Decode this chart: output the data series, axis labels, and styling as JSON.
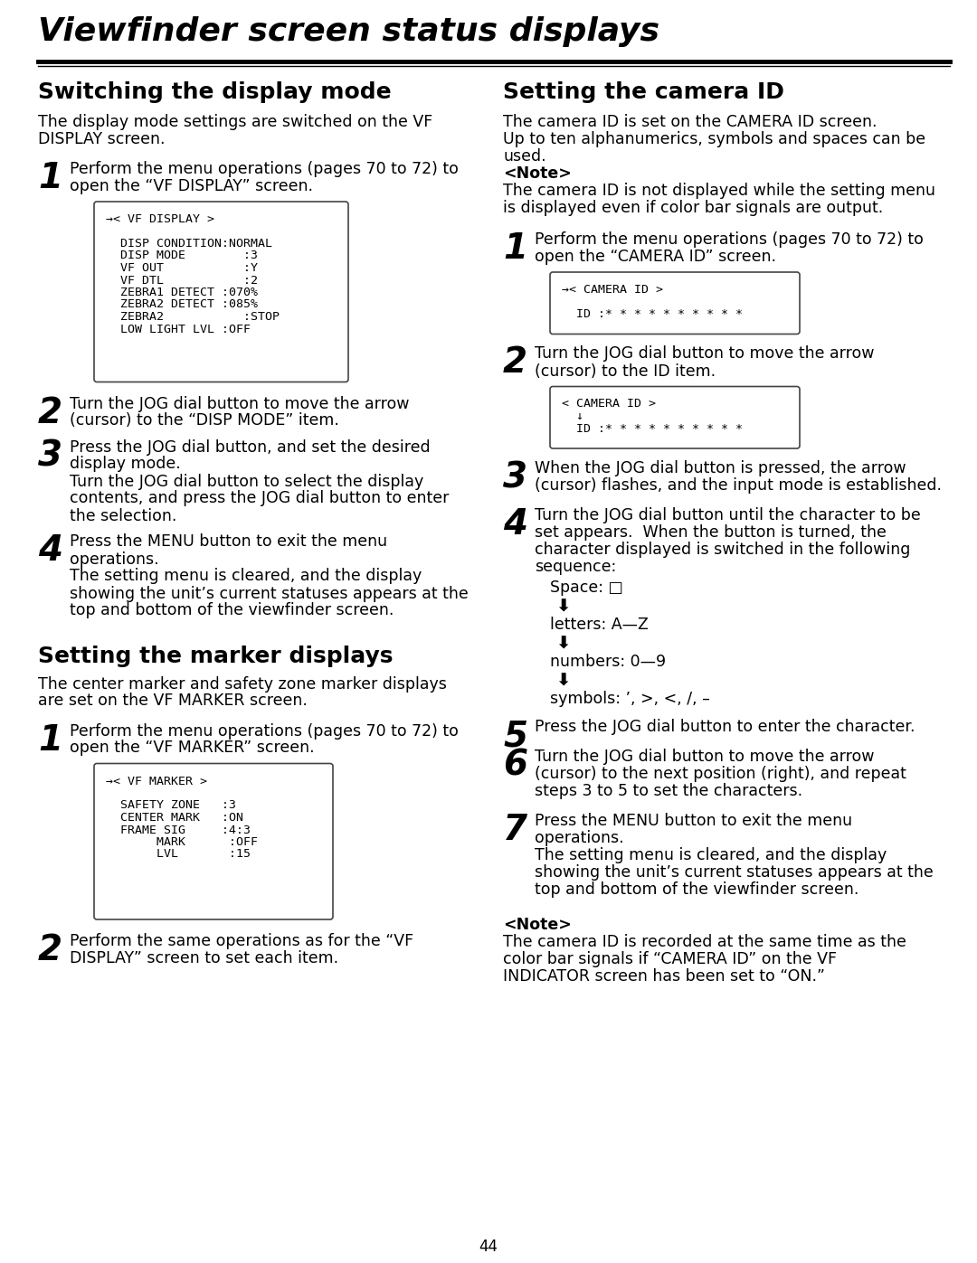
{
  "page_bg": "#ffffff",
  "title": "Viewfinder screen status displays",
  "page_number": "44",
  "left_col": {
    "section1_title": "Switching the display mode",
    "section1_intro_lines": [
      "The display mode settings are switched on the VF",
      "DISPLAY screen."
    ],
    "step1_num": "1",
    "step1_lines": [
      "Perform the menu operations (pages 70 to 72) to",
      "open the “VF DISPLAY” screen."
    ],
    "box1_lines": [
      "→< VF DISPLAY >",
      "",
      "  DISP CONDITION:NORMAL",
      "  DISP MODE        :3",
      "  VF OUT           :Y",
      "  VF DTL           :2",
      "  ZEBRA1 DETECT :070%",
      "  ZEBRA2 DETECT :085%",
      "  ZEBRA2           :STOP",
      "  LOW LIGHT LVL :OFF",
      "",
      "",
      ""
    ],
    "step2_num": "2",
    "step2_lines": [
      "Turn the JOG dial button to move the arrow",
      "(cursor) to the “DISP MODE” item."
    ],
    "step3_num": "3",
    "step3_lines": [
      "Press the JOG dial button, and set the desired",
      "display mode.",
      "Turn the JOG dial button to select the display",
      "contents, and press the JOG dial button to enter",
      "the selection."
    ],
    "step4_num": "4",
    "step4_lines": [
      "Press the MENU button to exit the menu",
      "operations.",
      "The setting menu is cleared, and the display",
      "showing the unit’s current statuses appears at the",
      "top and bottom of the viewfinder screen."
    ],
    "section2_title": "Setting the marker displays",
    "section2_intro_lines": [
      "The center marker and safety zone marker displays",
      "are set on the VF MARKER screen."
    ],
    "step_m1_num": "1",
    "step_m1_lines": [
      "Perform the menu operations (pages 70 to 72) to",
      "open the “VF MARKER” screen."
    ],
    "box2_lines": [
      "→< VF MARKER >",
      "",
      "  SAFETY ZONE   :3",
      "  CENTER MARK   :ON",
      "  FRAME SIG     :4:3",
      "       MARK      :OFF",
      "       LVL       :15",
      "",
      "",
      "",
      ""
    ],
    "step_m2_num": "2",
    "step_m2_lines": [
      "Perform the same operations as for the “VF",
      "DISPLAY” screen to set each item."
    ]
  },
  "right_col": {
    "section_title": "Setting the camera ID",
    "section_intro_lines": [
      "The camera ID is set on the CAMERA ID screen.",
      "Up to ten alphanumerics, symbols and spaces can be",
      "used."
    ],
    "note1_label": "<Note>",
    "note1_lines": [
      "The camera ID is not displayed while the setting menu",
      "is displayed even if color bar signals are output."
    ],
    "step1_num": "1",
    "step1_lines": [
      "Perform the menu operations (pages 70 to 72) to",
      "open the “CAMERA ID” screen."
    ],
    "box1_lines": [
      "→< CAMERA ID >",
      "",
      "  ID :* * * * * * * * * *"
    ],
    "step2_num": "2",
    "step2_lines": [
      "Turn the JOG dial button to move the arrow",
      "(cursor) to the ID item."
    ],
    "box2_lines": [
      "< CAMERA ID >",
      "  ↓",
      "  ID :* * * * * * * * * *"
    ],
    "step3_num": "3",
    "step3_lines": [
      "When the JOG dial button is pressed, the arrow",
      "(cursor) flashes, and the input mode is established."
    ],
    "step4_num": "4",
    "step4_lines": [
      "Turn the JOG dial button until the character to be",
      "set appears.  When the button is turned, the",
      "character displayed is switched in the following",
      "sequence:"
    ],
    "seq_items": [
      "Space: □",
      "arr",
      "letters: A—Z",
      "arr",
      "numbers: 0—9",
      "arr",
      "symbols: ’, >, <, /, –"
    ],
    "step5_num": "5",
    "step5_lines": [
      "Press the JOG dial button to enter the character."
    ],
    "step6_num": "6",
    "step6_lines": [
      "Turn the JOG dial button to move the arrow",
      "(cursor) to the next position (right), and repeat",
      "steps 3 to 5 to set the characters."
    ],
    "step7_num": "7",
    "step7_lines": [
      "Press the MENU button to exit the menu",
      "operations.",
      "The setting menu is cleared, and the display",
      "showing the unit’s current statuses appears at the",
      "top and bottom of the viewfinder screen."
    ],
    "note2_label": "<Note>",
    "note2_lines": [
      "The camera ID is recorded at the same time as the",
      "color bar signals if “CAMERA ID” on the VF",
      "INDICATOR screen has been set to “ON.”"
    ]
  }
}
